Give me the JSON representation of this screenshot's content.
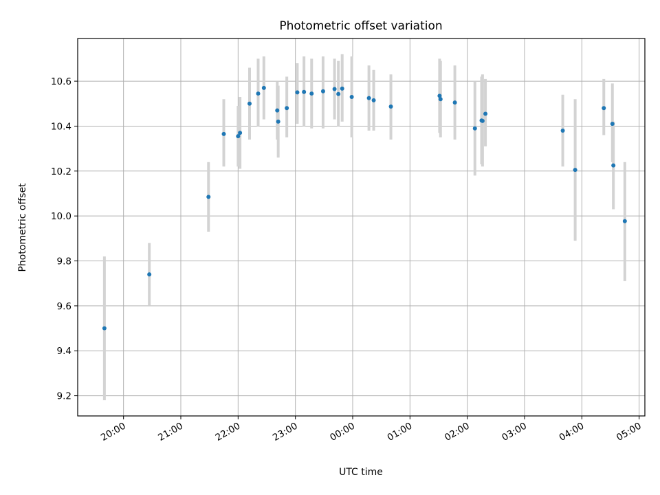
{
  "chart_data": {
    "type": "scatter",
    "title": "Photometric offset variation",
    "xlabel": "UTC time",
    "ylabel": "Photometric offset",
    "grid": true,
    "colors": {
      "point": "#1f77b4",
      "errorbar": "#d3d3d3"
    },
    "xlim": [
      "19:12",
      "05:06"
    ],
    "ylim": [
      9.11,
      10.79
    ],
    "xticks": [
      "20:00",
      "21:00",
      "22:00",
      "23:00",
      "00:00",
      "01:00",
      "02:00",
      "03:00",
      "04:00",
      "05:00"
    ],
    "yticks": [
      "9.2",
      "9.4",
      "9.6",
      "9.8",
      "10.0",
      "10.2",
      "10.4",
      "10.6"
    ],
    "points": [
      {
        "x": "19:40",
        "y": 9.5,
        "lo": 9.18,
        "hi": 9.82
      },
      {
        "x": "20:27",
        "y": 9.74,
        "lo": 9.6,
        "hi": 9.88
      },
      {
        "x": "21:29",
        "y": 10.085,
        "lo": 9.93,
        "hi": 10.24
      },
      {
        "x": "21:45",
        "y": 10.365,
        "lo": 10.22,
        "hi": 10.52
      },
      {
        "x": "22:00",
        "y": 10.355,
        "lo": 10.22,
        "hi": 10.49
      },
      {
        "x": "22:02",
        "y": 10.37,
        "lo": 10.21,
        "hi": 10.53
      },
      {
        "x": "22:12",
        "y": 10.5,
        "lo": 10.34,
        "hi": 10.66
      },
      {
        "x": "22:21",
        "y": 10.545,
        "lo": 10.4,
        "hi": 10.7
      },
      {
        "x": "22:27",
        "y": 10.57,
        "lo": 10.43,
        "hi": 10.71
      },
      {
        "x": "22:41",
        "y": 10.47,
        "lo": 10.34,
        "hi": 10.6
      },
      {
        "x": "22:42",
        "y": 10.42,
        "lo": 10.26,
        "hi": 10.58
      },
      {
        "x": "22:51",
        "y": 10.48,
        "lo": 10.35,
        "hi": 10.62
      },
      {
        "x": "23:02",
        "y": 10.55,
        "lo": 10.41,
        "hi": 10.68
      },
      {
        "x": "23:09",
        "y": 10.552,
        "lo": 10.4,
        "hi": 10.71
      },
      {
        "x": "23:17",
        "y": 10.545,
        "lo": 10.39,
        "hi": 10.7
      },
      {
        "x": "23:29",
        "y": 10.555,
        "lo": 10.39,
        "hi": 10.71
      },
      {
        "x": "23:41",
        "y": 10.565,
        "lo": 10.43,
        "hi": 10.7
      },
      {
        "x": "23:45",
        "y": 10.543,
        "lo": 10.4,
        "hi": 10.69
      },
      {
        "x": "23:49",
        "y": 10.567,
        "lo": 10.42,
        "hi": 10.72
      },
      {
        "x": "23:59",
        "y": 10.53,
        "lo": 10.35,
        "hi": 10.71
      },
      {
        "x": "00:17",
        "y": 10.525,
        "lo": 10.38,
        "hi": 10.67
      },
      {
        "x": "00:22",
        "y": 10.515,
        "lo": 10.38,
        "hi": 10.65
      },
      {
        "x": "00:40",
        "y": 10.487,
        "lo": 10.34,
        "hi": 10.63
      },
      {
        "x": "01:31",
        "y": 10.535,
        "lo": 10.37,
        "hi": 10.7
      },
      {
        "x": "01:32",
        "y": 10.52,
        "lo": 10.35,
        "hi": 10.69
      },
      {
        "x": "01:47",
        "y": 10.505,
        "lo": 10.34,
        "hi": 10.67
      },
      {
        "x": "02:08",
        "y": 10.39,
        "lo": 10.18,
        "hi": 10.6
      },
      {
        "x": "02:15",
        "y": 10.425,
        "lo": 10.23,
        "hi": 10.62
      },
      {
        "x": "02:16",
        "y": 10.423,
        "lo": 10.22,
        "hi": 10.63
      },
      {
        "x": "02:19",
        "y": 10.455,
        "lo": 10.31,
        "hi": 10.61
      },
      {
        "x": "03:40",
        "y": 10.38,
        "lo": 10.22,
        "hi": 10.54
      },
      {
        "x": "03:53",
        "y": 10.205,
        "lo": 9.89,
        "hi": 10.52
      },
      {
        "x": "04:23",
        "y": 10.48,
        "lo": 10.36,
        "hi": 10.61
      },
      {
        "x": "04:32",
        "y": 10.41,
        "lo": 10.24,
        "hi": 10.59
      },
      {
        "x": "04:33",
        "y": 10.225,
        "lo": 10.03,
        "hi": 10.42
      },
      {
        "x": "04:45",
        "y": 9.977,
        "lo": 9.71,
        "hi": 10.24
      }
    ]
  }
}
